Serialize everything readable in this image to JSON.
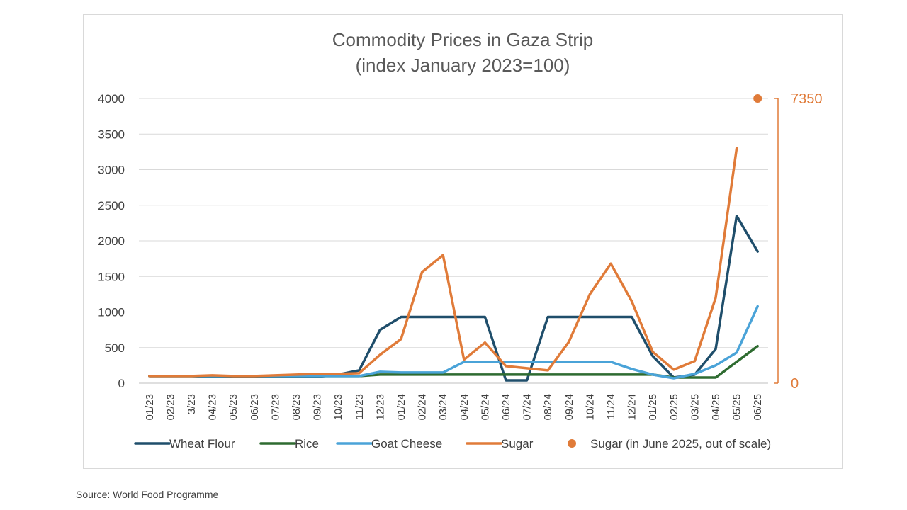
{
  "chart_data": {
    "type": "line",
    "title": "Commodity Prices in Gaza Strip",
    "subtitle": "(index January 2023=100)",
    "categories": [
      "01/23",
      "02/23",
      "3/23",
      "04/23",
      "05/23",
      "06/23",
      "07/23",
      "08/23",
      "09/23",
      "10/23",
      "11/23",
      "12/23",
      "01/24",
      "02/24",
      "03/24",
      "04/24",
      "05/24",
      "06/24",
      "07/24",
      "08/24",
      "09/24",
      "10/24",
      "11/24",
      "12/24",
      "01/25",
      "02/25",
      "03/25",
      "04/25",
      "05/25",
      "06/25"
    ],
    "ylim": [
      0,
      4000
    ],
    "yticks": [
      0,
      500,
      1000,
      1500,
      2000,
      2500,
      3000,
      3500,
      4000
    ],
    "secondary_axis": {
      "labels": [
        "0",
        "7350"
      ],
      "values": [
        0,
        7350
      ]
    },
    "series": [
      {
        "name": "Wheat Flour",
        "color": "#1f4e6b",
        "values": [
          100,
          100,
          100,
          90,
          90,
          90,
          90,
          90,
          90,
          120,
          180,
          750,
          930,
          930,
          930,
          930,
          930,
          40,
          40,
          930,
          930,
          930,
          930,
          930,
          380,
          80,
          120,
          480,
          2350,
          1850
        ]
      },
      {
        "name": "Rice",
        "color": "#2e6b30",
        "values": [
          100,
          100,
          100,
          100,
          100,
          100,
          100,
          100,
          100,
          100,
          100,
          120,
          120,
          120,
          120,
          120,
          120,
          120,
          120,
          120,
          120,
          120,
          120,
          120,
          120,
          80,
          80,
          80,
          300,
          520
        ]
      },
      {
        "name": "Goat Cheese",
        "color": "#4aa3d8",
        "values": [
          100,
          100,
          100,
          100,
          100,
          100,
          100,
          100,
          100,
          100,
          100,
          160,
          150,
          150,
          150,
          300,
          300,
          300,
          300,
          300,
          300,
          300,
          300,
          200,
          120,
          70,
          130,
          250,
          430,
          1080
        ]
      },
      {
        "name": "Sugar",
        "color": "#e07b39",
        "values": [
          100,
          100,
          100,
          110,
          100,
          100,
          110,
          120,
          130,
          130,
          140,
          400,
          620,
          1560,
          1800,
          330,
          570,
          240,
          210,
          180,
          580,
          1250,
          1680,
          1150,
          440,
          190,
          310,
          1200,
          3300,
          null
        ]
      }
    ],
    "outlier": {
      "name": "Sugar (in June 2025, out of scale)",
      "category": "06/25",
      "value": 7350,
      "color": "#e07b39"
    },
    "legend": [
      "Wheat Flour",
      "Rice",
      "Goat Cheese",
      "Sugar",
      "Sugar (in June 2025, out of scale)"
    ],
    "legend_position": "bottom",
    "grid": true
  },
  "source": "Source: World Food Programme"
}
